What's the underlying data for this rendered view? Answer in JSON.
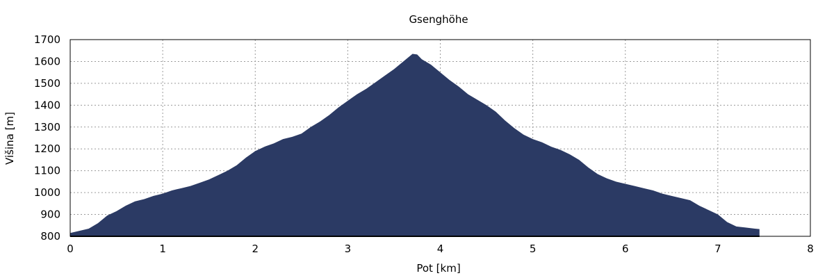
{
  "chart_data": {
    "type": "area",
    "title": "Gsenghöhe",
    "xlabel": "Pot [km]",
    "ylabel": "Višina [m]",
    "xlim": [
      0,
      8
    ],
    "ylim": [
      800,
      1700
    ],
    "xticks": [
      "0",
      "1",
      "2",
      "3",
      "4",
      "5",
      "6",
      "7",
      "8"
    ],
    "yticks": [
      "800",
      "900",
      "1000",
      "1100",
      "1200",
      "1300",
      "1400",
      "1500",
      "1600",
      "1700"
    ],
    "grid": true,
    "fill_color": "#2b3a64",
    "series": [
      {
        "x": [
          0,
          0.1,
          0.2,
          0.3,
          0.4,
          0.5,
          0.6,
          0.7,
          0.8,
          0.9,
          1.0,
          1.1,
          1.2,
          1.3,
          1.4,
          1.5,
          1.6,
          1.7,
          1.8,
          1.9,
          2.0,
          2.1,
          2.2,
          2.3,
          2.4,
          2.5,
          2.6,
          2.7,
          2.8,
          2.9,
          3.0,
          3.1,
          3.2,
          3.3,
          3.4,
          3.5,
          3.6,
          3.7,
          3.75,
          3.8,
          3.9,
          4.0,
          4.1,
          4.2,
          4.3,
          4.4,
          4.5,
          4.6,
          4.7,
          4.8,
          4.9,
          5.0,
          5.1,
          5.2,
          5.3,
          5.4,
          5.5,
          5.6,
          5.7,
          5.8,
          5.9,
          6.0,
          6.1,
          6.2,
          6.3,
          6.4,
          6.5,
          6.6,
          6.7,
          6.8,
          6.9,
          7.0,
          7.1,
          7.2,
          7.3,
          7.4,
          7.45
        ],
        "y": [
          815,
          825,
          835,
          860,
          895,
          915,
          940,
          960,
          970,
          985,
          995,
          1010,
          1020,
          1030,
          1045,
          1060,
          1080,
          1100,
          1125,
          1160,
          1190,
          1210,
          1225,
          1245,
          1255,
          1270,
          1300,
          1325,
          1355,
          1390,
          1420,
          1450,
          1475,
          1505,
          1535,
          1565,
          1600,
          1635,
          1632,
          1610,
          1585,
          1550,
          1515,
          1485,
          1450,
          1425,
          1400,
          1370,
          1330,
          1295,
          1265,
          1245,
          1230,
          1210,
          1195,
          1175,
          1150,
          1115,
          1085,
          1065,
          1050,
          1040,
          1030,
          1020,
          1010,
          995,
          985,
          975,
          965,
          940,
          920,
          900,
          865,
          845,
          840,
          835,
          833
        ]
      }
    ]
  }
}
